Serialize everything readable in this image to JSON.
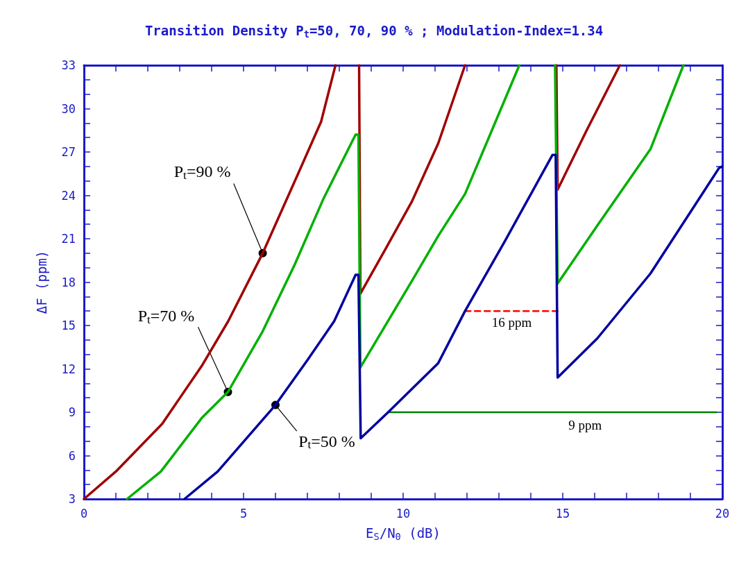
{
  "chart_data": {
    "type": "line",
    "title": "Transition Density P$_{t}$=50, 70, 90 % ; Modulation-Index=1.34",
    "xlabel": "E$_{S}$/N$_{0}$ (dB)",
    "ylabel": "ΔF (ppm)",
    "xlim": [
      0,
      20
    ],
    "ylim": [
      3,
      33
    ],
    "xticks": [
      0,
      {
        "value": 1,
        "label": null
      },
      {
        "value": 2,
        "label": null
      },
      {
        "value": 3,
        "label": null
      },
      {
        "value": 4,
        "label": null
      },
      5,
      {
        "value": 6,
        "label": null
      },
      {
        "value": 7,
        "label": null
      },
      {
        "value": 8,
        "label": null
      },
      {
        "value": 9,
        "label": null
      },
      10,
      {
        "value": 11,
        "label": null
      },
      {
        "value": 12,
        "label": null
      },
      {
        "value": 13,
        "label": null
      },
      {
        "value": 14,
        "label": null
      },
      15,
      {
        "value": 16,
        "label": null
      },
      {
        "value": 17,
        "label": null
      },
      {
        "value": 18,
        "label": null
      },
      {
        "value": 19,
        "label": null
      },
      20
    ],
    "yticks": [
      3,
      {
        "value": 4,
        "label": null
      },
      {
        "value": 5,
        "label": null
      },
      6,
      {
        "value": 7,
        "label": null
      },
      {
        "value": 8,
        "label": null
      },
      9,
      {
        "value": 10,
        "label": null
      },
      {
        "value": 11,
        "label": null
      },
      12,
      {
        "value": 13,
        "label": null
      },
      {
        "value": 14,
        "label": null
      },
      15,
      {
        "value": 16,
        "label": null
      },
      {
        "value": 17,
        "label": null
      },
      18,
      {
        "value": 19,
        "label": null
      },
      {
        "value": 20,
        "label": null
      },
      21,
      {
        "value": 22,
        "label": null
      },
      {
        "value": 23,
        "label": null
      },
      24,
      {
        "value": 25,
        "label": null
      },
      {
        "value": 26,
        "label": null
      },
      27,
      {
        "value": 28,
        "label": null
      },
      {
        "value": 29,
        "label": null
      },
      30,
      {
        "value": 31,
        "label": null
      },
      {
        "value": 32,
        "label": null
      },
      33
    ],
    "grid": false,
    "marker": "none",
    "line_style": "solid",
    "series": [
      {
        "color": "#a00000",
        "x": [
          0,
          1,
          2.45,
          3.69,
          4.52,
          5.6,
          6.77,
          7.43,
          7.88,
          8.25,
          8.62,
          8.66,
          9.45,
          10.28,
          11.1,
          11.94,
          12.4,
          14.8,
          14.84,
          15.75,
          16.79
        ],
        "values": [
          3,
          4.9,
          8.2,
          12.2,
          15.3,
          20,
          25.8,
          29.1,
          33,
          null,
          33,
          17.2,
          20.3,
          23.6,
          27.6,
          33,
          null,
          33,
          24.4,
          28.5,
          33
        ]
      },
      {
        "color": "#00b000",
        "x": [
          1.35,
          2.41,
          3.69,
          4.51,
          5.6,
          6.6,
          7.51,
          8.51,
          8.6,
          8.66,
          10.28,
          11.1,
          11.94,
          13.64,
          14.2,
          14.76,
          14.84,
          16.08,
          17.75,
          18.78
        ],
        "values": [
          3,
          4.9,
          8.6,
          10.4,
          14.6,
          19.2,
          23.8,
          28.2,
          28.2,
          12.1,
          18.1,
          21.2,
          24.1,
          33,
          null,
          33,
          17.9,
          21.9,
          27.2,
          33
        ]
      },
      {
        "color": "#0000a0",
        "x": [
          3.15,
          4.19,
          6,
          7,
          7.84,
          8.51,
          8.6,
          8.67,
          9.53,
          11.1,
          11.94,
          13.18,
          14.68,
          14.78,
          14.84,
          16.08,
          17.75,
          19.9,
          20
        ],
        "values": [
          3,
          4.9,
          9.5,
          12.6,
          15.3,
          18.5,
          18.5,
          7.2,
          9,
          12.4,
          16,
          20.8,
          26.8,
          26.8,
          11.4,
          14.1,
          18.6,
          25.9,
          26
        ]
      },
      {
        "type": "line",
        "color": "#ff0000",
        "line_style": "dashed",
        "x": [
          11.94,
          14.84
        ],
        "values": [
          16,
          16
        ]
      },
      {
        "type": "line",
        "color": "#008000",
        "line_style": "solid",
        "x": [
          9.53,
          19.82
        ],
        "values": [
          9,
          9
        ]
      }
    ],
    "annotations": [
      {
        "text": "P$_{t}$=90 %",
        "x": 5.6,
        "y": 20
      },
      {
        "text": "P$_{t}$=70 %",
        "x": 4.51,
        "y": 10.4
      },
      {
        "text": "P$_{t}$=50 %",
        "x": 6,
        "y": 9.5
      },
      {
        "text": "16 ppm",
        "x": 13.4,
        "y": 16
      },
      {
        "text": "9 ppm",
        "x": 15.7,
        "y": 9
      }
    ]
  }
}
